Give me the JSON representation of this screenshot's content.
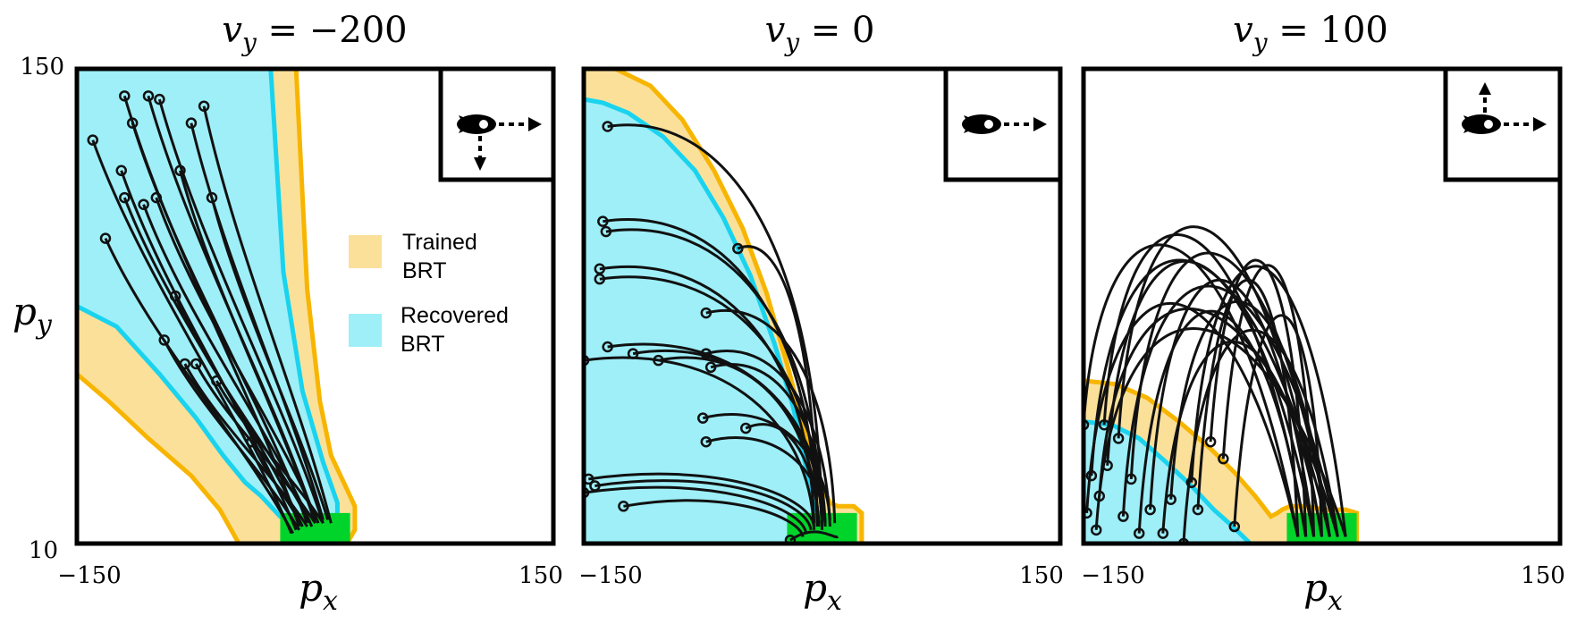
{
  "chart_data": [
    {
      "type": "line",
      "title": "v_y = −200",
      "title_var": "v",
      "title_sub": "y",
      "title_rest": " = −200",
      "xlabel": "p_x",
      "ylabel": "p_y",
      "xlim": [
        -150,
        150
      ],
      "ylim": [
        10,
        150
      ],
      "xticks": [
        "−150",
        "150"
      ],
      "yticks": [
        "150",
        "10"
      ],
      "legend": {
        "placement": "center-right",
        "entries": [
          {
            "label_lines": [
              "Trained",
              "BRT"
            ],
            "color": "#fbe09a"
          },
          {
            "label_lines": [
              "Recovered",
              "BRT"
            ],
            "color": "#9eeff8"
          }
        ]
      },
      "icon": "rocket-right-down-icon",
      "goal_region": {
        "x": [
          -22,
          22
        ],
        "y": [
          10,
          19
        ],
        "color": "#00d42a"
      },
      "trained_brt": {
        "x": [
          -150,
          -150,
          -130,
          -105,
          -78,
          -60,
          -48,
          -32,
          -15,
          0,
          10,
          20,
          25,
          25,
          18,
          10,
          3,
          -5,
          -12,
          -150
        ],
        "y": [
          150,
          60,
          52,
          41,
          30,
          20,
          10,
          10,
          10,
          10,
          10,
          10,
          14,
          21,
          28,
          36,
          52,
          85,
          150,
          150
        ]
      },
      "recovered_brt": {
        "x": [
          -150,
          -150,
          -125,
          -98,
          -75,
          -58,
          -44,
          -34,
          -22,
          0,
          14,
          14,
          5,
          -8,
          -20,
          -28,
          -150
        ],
        "y": [
          150,
          80,
          74,
          60,
          47,
          36,
          28,
          24,
          18,
          18,
          18,
          22,
          34,
          55,
          90,
          150,
          150
        ]
      },
      "trajectories": [
        {
          "start": [
            -140,
            129
          ],
          "end": [
            -15,
            13
          ]
        },
        {
          "start": [
            -120,
            142
          ],
          "end": [
            -10,
            15
          ]
        },
        {
          "start": [
            -115,
            134
          ],
          "end": [
            -5,
            16
          ]
        },
        {
          "start": [
            -105,
            142
          ],
          "end": [
            0,
            17
          ]
        },
        {
          "start": [
            -98,
            141
          ],
          "end": [
            5,
            16
          ]
        },
        {
          "start": [
            -122,
            120
          ],
          "end": [
            -12,
            14
          ]
        },
        {
          "start": [
            -120,
            112
          ],
          "end": [
            -8,
            15
          ]
        },
        {
          "start": [
            -108,
            110
          ],
          "end": [
            -3,
            16
          ]
        },
        {
          "start": [
            -100,
            112
          ],
          "end": [
            2,
            16
          ]
        },
        {
          "start": [
            -132,
            100
          ],
          "end": [
            -14,
            13
          ]
        },
        {
          "start": [
            -70,
            139
          ],
          "end": [
            10,
            16
          ]
        },
        {
          "start": [
            -78,
            134
          ],
          "end": [
            5,
            17
          ]
        },
        {
          "start": [
            -85,
            120
          ],
          "end": [
            0,
            16
          ]
        },
        {
          "start": [
            -65,
            112
          ],
          "end": [
            8,
            17
          ]
        },
        {
          "start": [
            -88,
            83
          ],
          "end": [
            -2,
            15
          ]
        },
        {
          "start": [
            -95,
            70
          ],
          "end": [
            -10,
            14
          ]
        },
        {
          "start": [
            -82,
            63
          ],
          "end": [
            -5,
            15
          ]
        },
        {
          "start": [
            -75,
            63
          ],
          "end": [
            0,
            16
          ]
        },
        {
          "start": [
            -62,
            58
          ],
          "end": [
            5,
            16
          ]
        },
        {
          "start": [
            -40,
            40
          ],
          "end": [
            -8,
            15
          ]
        }
      ]
    },
    {
      "type": "line",
      "title": "v_y = 0",
      "title_var": "v",
      "title_sub": "y",
      "title_rest": " = 0",
      "xlabel": "p_x",
      "xlim": [
        -150,
        150
      ],
      "ylim": [
        10,
        150
      ],
      "xticks": [
        "−150",
        "150"
      ],
      "icon": "rocket-right-icon",
      "goal_region": {
        "x": [
          -22,
          22
        ],
        "y": [
          10,
          19
        ],
        "color": "#00d42a"
      },
      "trained_brt": {
        "x": [
          -150,
          -130,
          -108,
          -88,
          -68,
          -50,
          -35,
          -22,
          -12,
          -5,
          2,
          5,
          10,
          20,
          25,
          25,
          -150
        ],
        "y": [
          150,
          150,
          145,
          135,
          120,
          103,
          84,
          63,
          45,
          33,
          25,
          22,
          21,
          21,
          19,
          10,
          10
        ]
      },
      "recovered_brt": {
        "x": [
          -150,
          -138,
          -122,
          -100,
          -80,
          -62,
          -45,
          -30,
          -18,
          -12,
          -8,
          -5,
          -2,
          0,
          0,
          -150
        ],
        "y": [
          141,
          140,
          137,
          130,
          120,
          106,
          89,
          69,
          50,
          37,
          27,
          21,
          19,
          19,
          10,
          10
        ]
      },
      "trajectories": [
        {
          "start": [
            -135,
            133
          ],
          "end": [
            0,
            16
          ]
        },
        {
          "start": [
            -138,
            105
          ],
          "end": [
            -3,
            15
          ]
        },
        {
          "start": [
            -136,
            102
          ],
          "end": [
            0,
            15
          ]
        },
        {
          "start": [
            -140,
            91
          ],
          "end": [
            -5,
            16
          ]
        },
        {
          "start": [
            -140,
            88
          ],
          "end": [
            0,
            14
          ]
        },
        {
          "start": [
            -135,
            68
          ],
          "end": [
            2,
            15
          ]
        },
        {
          "start": [
            -119,
            66
          ],
          "end": [
            0,
            16
          ]
        },
        {
          "start": [
            -103,
            64
          ],
          "end": [
            -2,
            15
          ]
        },
        {
          "start": [
            -150,
            64
          ],
          "end": [
            -5,
            14
          ]
        },
        {
          "start": [
            -73,
            78
          ],
          "end": [
            8,
            16
          ]
        },
        {
          "start": [
            -73,
            66
          ],
          "end": [
            5,
            15
          ]
        },
        {
          "start": [
            -70,
            62
          ],
          "end": [
            2,
            16
          ]
        },
        {
          "start": [
            -53,
            97
          ],
          "end": [
            -3,
            17
          ]
        },
        {
          "start": [
            -75,
            47
          ],
          "end": [
            5,
            17
          ]
        },
        {
          "start": [
            -73,
            40
          ],
          "end": [
            2,
            16
          ]
        },
        {
          "start": [
            -48,
            44
          ],
          "end": [
            -2,
            16
          ]
        },
        {
          "start": [
            -147,
            29
          ],
          "end": [
            -5,
            15
          ]
        },
        {
          "start": [
            -143,
            27
          ],
          "end": [
            -7,
            14
          ]
        },
        {
          "start": [
            -150,
            25
          ],
          "end": [
            -10,
            13
          ]
        },
        {
          "start": [
            -125,
            21
          ],
          "end": [
            -12,
            12
          ]
        },
        {
          "start": [
            -20,
            11
          ],
          "end": [
            10,
            12
          ]
        }
      ]
    },
    {
      "type": "line",
      "title": "v_y = 100",
      "title_var": "v",
      "title_sub": "y",
      "title_rest": " = 100",
      "xlabel": "p_x",
      "xlim": [
        -150,
        150
      ],
      "ylim": [
        10,
        150
      ],
      "xticks": [
        "−150",
        "150"
      ],
      "icon": "rocket-right-up-icon",
      "goal_region": {
        "x": [
          -22,
          22
        ],
        "y": [
          10,
          19
        ],
        "color": "#00d42a"
      },
      "trained_brt": {
        "x": [
          -150,
          -130,
          -110,
          -90,
          -70,
          -55,
          -42,
          -32,
          -28,
          -25,
          -20,
          -10,
          2,
          15,
          22,
          22,
          -150
        ],
        "y": [
          58,
          57,
          53,
          46,
          38,
          31,
          24,
          18,
          19,
          20,
          21,
          21,
          20,
          20,
          19,
          10,
          10
        ]
      },
      "recovered_brt": {
        "x": [
          -150,
          -132,
          -115,
          -98,
          -82,
          -68,
          -56,
          -45,
          -22,
          -22,
          -150
        ],
        "y": [
          46,
          45,
          41,
          34,
          27,
          20,
          15,
          10,
          10,
          10,
          10
        ]
      },
      "trajectories": [
        {
          "start": [
            -150,
            45
          ],
          "peg": 0
        },
        {
          "start": [
            -137,
            45
          ],
          "peg": 1
        },
        {
          "start": [
            -135,
            33
          ],
          "peg": 2
        },
        {
          "start": [
            -128,
            41
          ],
          "peg": 3
        },
        {
          "start": [
            -120,
            29
          ],
          "peg": 4
        },
        {
          "start": [
            -140,
            24
          ],
          "peg": 5
        },
        {
          "start": [
            -142,
            14
          ],
          "peg": 6
        },
        {
          "start": [
            -148,
            19
          ],
          "peg": 7
        },
        {
          "start": [
            -115,
            13
          ],
          "peg": 8
        },
        {
          "start": [
            -108,
            20
          ],
          "peg": 9
        },
        {
          "start": [
            -100,
            13
          ],
          "peg": 10
        },
        {
          "start": [
            -95,
            23
          ],
          "peg": 11
        },
        {
          "start": [
            -87,
            10
          ],
          "peg": 12
        },
        {
          "start": [
            -82,
            28
          ],
          "peg": 13
        },
        {
          "start": [
            -78,
            20
          ],
          "peg": 14
        },
        {
          "start": [
            -70,
            40
          ],
          "peg": 15
        },
        {
          "start": [
            -62,
            35
          ],
          "peg": 16
        },
        {
          "start": [
            -55,
            15
          ],
          "peg": 17
        },
        {
          "start": [
            -145,
            30
          ],
          "peg": 18
        },
        {
          "start": [
            -125,
            18
          ],
          "peg": 19
        }
      ]
    }
  ]
}
